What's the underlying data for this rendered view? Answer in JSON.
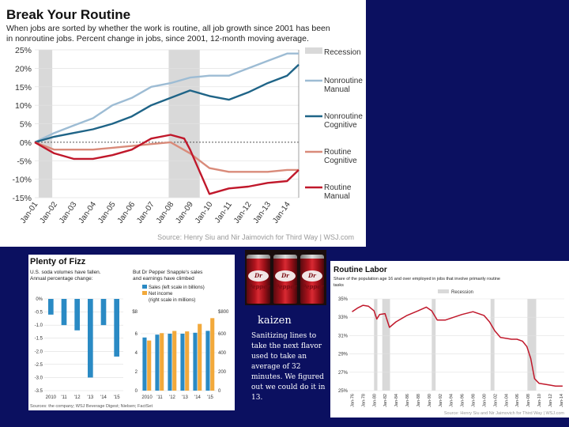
{
  "slide": {
    "photo_alt": "Dr Pepper cans",
    "caption_title": "kaizen",
    "caption_body": "Sanitizing lines to take the next flavor used to take an average of 32 minutes. We figured out we could do it in 13."
  },
  "chart_data": [
    {
      "id": "routine",
      "type": "line",
      "title": "Break Your Routine",
      "subtitle": [
        "When jobs are sorted by whether the work is routine, all job growth since 2001 has been",
        "in nonroutine jobs. Percent change in jobs, since 2001, 12-month moving average."
      ],
      "source": "Source: Henry Siu and Nir Jaimovich for Third Way | WSJ.com",
      "ylim": [
        -15,
        25
      ],
      "yticks": [
        "25%",
        "20%",
        "15%",
        "10%",
        "5%",
        "0%",
        "-5%",
        "-10%",
        "-15%"
      ],
      "xticks": [
        "Jan-01",
        "Jan-02",
        "Jan-03",
        "Jan-04",
        "Jan-05",
        "Jan-06",
        "Jan-07",
        "Jan-08",
        "Jan-09",
        "Jan-10",
        "Jan-11",
        "Jan-12",
        "Jan-13",
        "Jan-14"
      ],
      "recessions": [
        [
          2001.2,
          2001.9
        ],
        [
          2007.9,
          2009.5
        ]
      ],
      "legend": [
        {
          "label": "Recession",
          "color": "#d9d9d9",
          "kind": "box"
        },
        {
          "label": "Nonroutine Manual",
          "color": "#9dbcd4",
          "kind": "line"
        },
        {
          "label": "Nonroutine Cognitive",
          "color": "#1f6487",
          "kind": "line"
        },
        {
          "label": "Routine Cognitive",
          "color": "#d98b7a",
          "kind": "line"
        },
        {
          "label": "Routine Manual",
          "color": "#c0182b",
          "kind": "line"
        }
      ],
      "series": [
        {
          "name": "Nonroutine Manual",
          "color": "#9dbcd4",
          "x": [
            2001,
            2002,
            2003,
            2004,
            2005,
            2006,
            2007,
            2008,
            2009,
            2010,
            2011,
            2012,
            2013,
            2014,
            2014.6
          ],
          "y": [
            0,
            2.5,
            4.5,
            6.5,
            10,
            12,
            15,
            16,
            17.5,
            18,
            18,
            20,
            22,
            24,
            24
          ]
        },
        {
          "name": "Nonroutine Cognitive",
          "color": "#1f6487",
          "x": [
            2001,
            2002,
            2003,
            2004,
            2005,
            2006,
            2007,
            2008,
            2009,
            2010,
            2011,
            2012,
            2013,
            2014,
            2014.6
          ],
          "y": [
            0,
            1.5,
            2.5,
            3.5,
            5,
            7,
            10,
            12,
            14,
            12.5,
            11.5,
            13.5,
            16,
            18,
            21
          ]
        },
        {
          "name": "Routine Cognitive",
          "color": "#d98b7a",
          "x": [
            2001,
            2002,
            2003,
            2004,
            2005,
            2006,
            2007,
            2008,
            2009,
            2010,
            2011,
            2012,
            2013,
            2014,
            2014.6
          ],
          "y": [
            0,
            -2,
            -2,
            -2,
            -1.5,
            -1,
            -0.5,
            0,
            -3,
            -7,
            -8,
            -8,
            -8,
            -7.5,
            -7.5
          ]
        },
        {
          "name": "Routine Manual",
          "color": "#c0182b",
          "x": [
            2001,
            2002,
            2003,
            2004,
            2005,
            2006,
            2007,
            2008,
            2008.7,
            2009,
            2009.5,
            2010,
            2011,
            2012,
            2013,
            2014,
            2014.6
          ],
          "y": [
            0,
            -3,
            -4.5,
            -4.5,
            -3.5,
            -2,
            1,
            2,
            1,
            -2,
            -8,
            -14,
            -12.5,
            -12,
            -11,
            -10.5,
            -7.5
          ]
        }
      ]
    },
    {
      "id": "soda",
      "type": "bar",
      "title": "Plenty of Fizz",
      "left_subtitle": [
        "U.S. soda volumes have fallen.",
        "Annual percentage change:"
      ],
      "right_subtitle": [
        "But Dr Pepper Snapple's sales",
        "and earnings have climbed"
      ],
      "source": "Sources: the company; WSJ Beverage Digest; Nielsen; FactSet",
      "categories": [
        "2010",
        "'11",
        "'12",
        "'13",
        "'14",
        "'15"
      ],
      "left": {
        "ylim": [
          -3.5,
          0
        ],
        "yticks": [
          "0%",
          "-0.5",
          "-1.0",
          "-1.5",
          "-2.0",
          "-2.5",
          "-3.0",
          "-3.5"
        ],
        "series": [
          {
            "name": "",
            "color": "#2a8ac4",
            "values": [
              -0.6,
              -1.0,
              -1.2,
              -3.0,
              -1.0,
              -2.2
            ]
          }
        ]
      },
      "right": {
        "left_axis_label": "$8",
        "left_ticks": [
          "6",
          "4",
          "2",
          "0"
        ],
        "right_axis_label": "$800",
        "right_ticks": [
          "600",
          "400",
          "200",
          "0"
        ],
        "legend": [
          "Sales (left scale in billions)",
          "Net income",
          "(right scale in millions)"
        ],
        "series": [
          {
            "name": "Sales (left scale in billions)",
            "color": "#2a8ac4",
            "values": [
              5.6,
              5.9,
              6.0,
              6.0,
              6.1,
              6.3
            ]
          },
          {
            "name": "Net income (right scale in millions)",
            "color": "#f2a93b",
            "values": [
              528,
              606,
              629,
              624,
              703,
              764
            ]
          }
        ]
      }
    },
    {
      "id": "labor",
      "type": "line",
      "title": "Routine Labor",
      "subtitle": [
        "Share of the population age 16 and over employed in jobs that involve primarily routine",
        "tasks"
      ],
      "source": "Source: Henry Siu and Nir Jaimovich for Third Way | WSJ.com",
      "ylim": [
        25,
        35
      ],
      "yticks": [
        "35%",
        "33%",
        "31%",
        "29%",
        "27%",
        "25%"
      ],
      "legend": [
        {
          "label": "Recession",
          "color": "#d9d9d9",
          "kind": "box"
        }
      ],
      "xticks": [
        "Jan-76",
        "Jan-78",
        "Jan-80",
        "Jan-82",
        "Jan-84",
        "Jan-86",
        "Jan-88",
        "Jan-90",
        "Jan-92",
        "Jan-94",
        "Jan-96",
        "Jan-98",
        "Jan-00",
        "Jan-02",
        "Jan-04",
        "Jan-06",
        "Jan-08",
        "Jan-10",
        "Jan-12",
        "Jan-14"
      ],
      "recessions": [
        [
          1980,
          1980.6
        ],
        [
          1981.5,
          1982.9
        ],
        [
          1990.5,
          1991.2
        ],
        [
          2001.2,
          2001.9
        ],
        [
          2007.9,
          2009.5
        ]
      ],
      "series": [
        {
          "name": "",
          "color": "#c0182b",
          "x": [
            1976,
            1977,
            1978,
            1979,
            1980,
            1980.5,
            1981,
            1982,
            1982.8,
            1984,
            1986,
            1988,
            1989.5,
            1990.5,
            1991.5,
            1993,
            1996,
            1998,
            2000,
            2001,
            2002,
            2003,
            2005,
            2006,
            2007,
            2007.8,
            2008.5,
            2009.2,
            2010,
            2011,
            2012,
            2013,
            2014.3
          ],
          "y": [
            33.6,
            34,
            34.3,
            34.2,
            33.7,
            32.8,
            33.3,
            33.4,
            31.9,
            32.5,
            33.2,
            33.7,
            34.1,
            33.7,
            32.7,
            32.7,
            33.3,
            33.6,
            33.2,
            32.5,
            31.5,
            30.8,
            30.6,
            30.6,
            30.4,
            29.8,
            28.5,
            26.3,
            25.8,
            25.7,
            25.6,
            25.5,
            25.5
          ]
        }
      ]
    }
  ]
}
